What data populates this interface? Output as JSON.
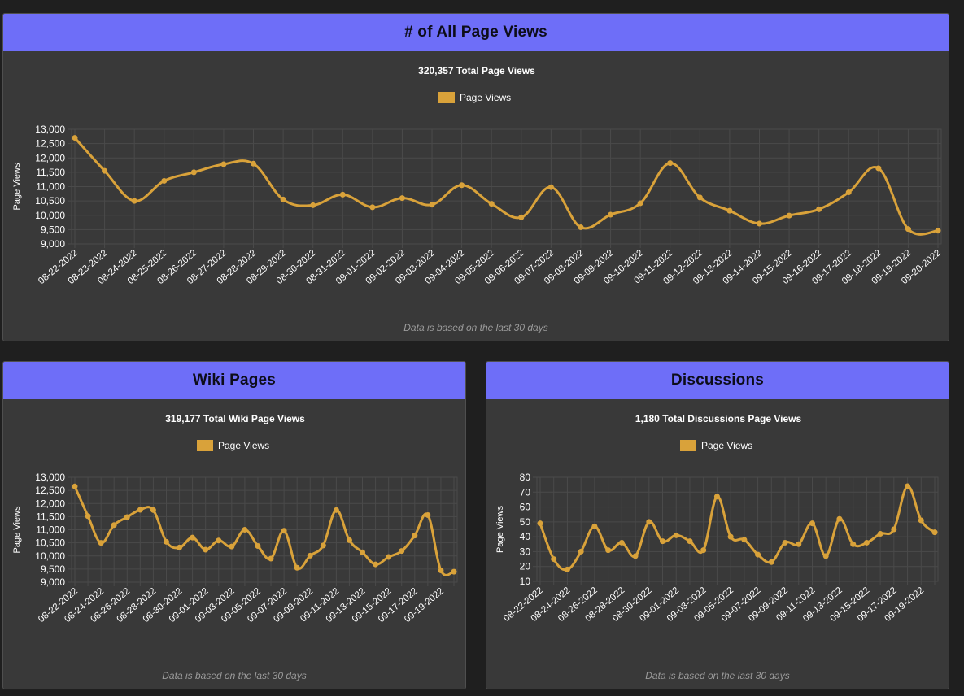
{
  "colors": {
    "accent": "#6e6ef8",
    "series": "#d9a23a",
    "panel_bg": "#393939",
    "page_bg": "#1f1f1f",
    "grid": "#4a4a4a",
    "text": "#ffffff"
  },
  "panels": [
    {
      "title": "# of All Page Views",
      "footnote": "Data is based on the last 30 days"
    },
    {
      "title": "Wiki Pages",
      "footnote": "Data is based on the last 30 days"
    },
    {
      "title": "Discussions",
      "footnote": "Data is based on the last 30 days"
    }
  ],
  "chart_data": [
    {
      "type": "line",
      "title": "320,357 Total Page Views",
      "ylabel": "Page Views",
      "xlabel": "",
      "legend": "top-center",
      "grid": true,
      "series": [
        {
          "name": "Page Views",
          "values": [
            12700,
            11550,
            10500,
            11200,
            11500,
            11780,
            11800,
            10550,
            10350,
            10720,
            10280,
            10600,
            10370,
            11050,
            10400,
            9930,
            10980,
            9580,
            10020,
            10420,
            11820,
            10620,
            10160,
            9710,
            9990,
            10210,
            10800,
            11640,
            9520,
            9460
          ]
        }
      ],
      "categories": [
        "08-22-2022",
        "08-23-2022",
        "08-24-2022",
        "08-25-2022",
        "08-26-2022",
        "08-27-2022",
        "08-28-2022",
        "08-29-2022",
        "08-30-2022",
        "08-31-2022",
        "09-01-2022",
        "09-02-2022",
        "09-03-2022",
        "09-04-2022",
        "09-05-2022",
        "09-06-2022",
        "09-07-2022",
        "09-08-2022",
        "09-09-2022",
        "09-10-2022",
        "09-11-2022",
        "09-12-2022",
        "09-13-2022",
        "09-14-2022",
        "09-15-2022",
        "09-16-2022",
        "09-17-2022",
        "09-18-2022",
        "09-19-2022",
        "09-20-2022"
      ],
      "tick_labels": [
        "08-22-2022",
        "08-23-2022",
        "08-24-2022",
        "08-25-2022",
        "08-26-2022",
        "08-27-2022",
        "08-28-2022",
        "08-29-2022",
        "08-30-2022",
        "08-31-2022",
        "09-01-2022",
        "09-02-2022",
        "09-03-2022",
        "09-04-2022",
        "09-05-2022",
        "09-06-2022",
        "09-07-2022",
        "09-08-2022",
        "09-09-2022",
        "09-10-2022",
        "09-11-2022",
        "09-12-2022",
        "09-13-2022",
        "09-14-2022",
        "09-15-2022",
        "09-16-2022",
        "09-17-2022",
        "09-18-2022",
        "09-19-2022",
        "09-20-2022"
      ],
      "yticks": [
        9000,
        9500,
        10000,
        10500,
        11000,
        11500,
        12000,
        12500,
        13000
      ],
      "ylim": [
        9000,
        13000
      ]
    },
    {
      "type": "line",
      "title": "319,177 Total Wiki Page Views",
      "ylabel": "Page Views",
      "xlabel": "",
      "legend": "top-center",
      "grid": true,
      "series": [
        {
          "name": "Page Views",
          "values": [
            12650,
            11520,
            10500,
            11180,
            11480,
            11760,
            11750,
            10540,
            10320,
            10700,
            10240,
            10590,
            10360,
            11000,
            10380,
            9900,
            10960,
            9550,
            10010,
            10400,
            11750,
            10600,
            10140,
            9680,
            9960,
            10190,
            10780,
            11560,
            9450,
            9400
          ]
        }
      ],
      "categories": [
        "08-22-2022",
        "08-23-2022",
        "08-24-2022",
        "08-25-2022",
        "08-26-2022",
        "08-27-2022",
        "08-28-2022",
        "08-29-2022",
        "08-30-2022",
        "08-31-2022",
        "09-01-2022",
        "09-02-2022",
        "09-03-2022",
        "09-04-2022",
        "09-05-2022",
        "09-06-2022",
        "09-07-2022",
        "09-08-2022",
        "09-09-2022",
        "09-10-2022",
        "09-11-2022",
        "09-12-2022",
        "09-13-2022",
        "09-14-2022",
        "09-15-2022",
        "09-16-2022",
        "09-17-2022",
        "09-18-2022",
        "09-19-2022",
        "09-20-2022"
      ],
      "tick_labels": [
        "08-22-2022",
        "",
        "08-24-2022",
        "",
        "08-26-2022",
        "",
        "08-28-2022",
        "",
        "08-30-2022",
        "",
        "09-01-2022",
        "",
        "09-03-2022",
        "",
        "09-05-2022",
        "",
        "09-07-2022",
        "",
        "09-09-2022",
        "",
        "09-11-2022",
        "",
        "09-13-2022",
        "",
        "09-15-2022",
        "",
        "09-17-2022",
        "",
        "09-19-2022",
        ""
      ],
      "yticks": [
        9000,
        9500,
        10000,
        10500,
        11000,
        11500,
        12000,
        12500,
        13000
      ],
      "ylim": [
        9000,
        13000
      ]
    },
    {
      "type": "line",
      "title": "1,180 Total Discussions Page Views",
      "ylabel": "Page Views",
      "xlabel": "",
      "legend": "top-center",
      "grid": true,
      "series": [
        {
          "name": "Page Views",
          "values": [
            49,
            25,
            18,
            30,
            47,
            31,
            36,
            27,
            50,
            37,
            41,
            37,
            31,
            67,
            40,
            38,
            28,
            23,
            36,
            35,
            49,
            27,
            52,
            35,
            36,
            42,
            45,
            74,
            51,
            43
          ]
        }
      ],
      "categories": [
        "08-22-2022",
        "08-23-2022",
        "08-24-2022",
        "08-25-2022",
        "08-26-2022",
        "08-27-2022",
        "08-28-2022",
        "08-29-2022",
        "08-30-2022",
        "08-31-2022",
        "09-01-2022",
        "09-02-2022",
        "09-03-2022",
        "09-04-2022",
        "09-05-2022",
        "09-06-2022",
        "09-07-2022",
        "09-08-2022",
        "09-09-2022",
        "09-10-2022",
        "09-11-2022",
        "09-12-2022",
        "09-13-2022",
        "09-14-2022",
        "09-15-2022",
        "09-16-2022",
        "09-17-2022",
        "09-18-2022",
        "09-19-2022",
        "09-20-2022"
      ],
      "tick_labels": [
        "08-22-2022",
        "",
        "08-24-2022",
        "",
        "08-26-2022",
        "",
        "08-28-2022",
        "",
        "08-30-2022",
        "",
        "09-01-2022",
        "",
        "09-03-2022",
        "",
        "09-05-2022",
        "",
        "09-07-2022",
        "",
        "09-09-2022",
        "",
        "09-11-2022",
        "",
        "09-13-2022",
        "",
        "09-15-2022",
        "",
        "09-17-2022",
        "",
        "09-19-2022",
        ""
      ],
      "yticks": [
        10,
        20,
        30,
        40,
        50,
        60,
        70,
        80
      ],
      "ylim": [
        10,
        80
      ]
    }
  ]
}
